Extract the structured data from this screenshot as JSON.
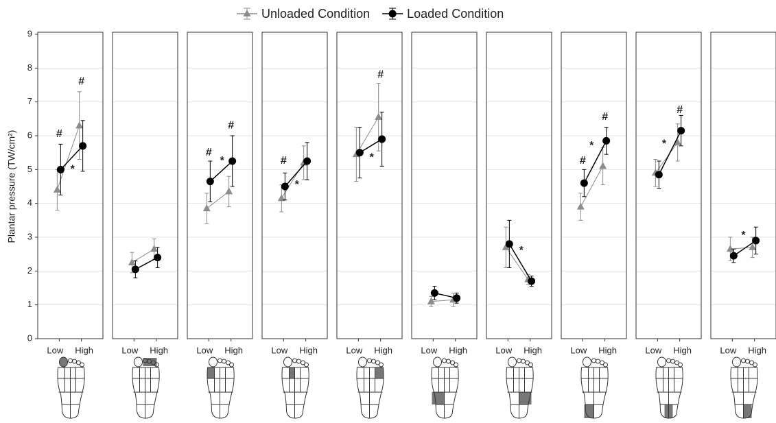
{
  "chart_data": {
    "type": "line",
    "ylabel": "Plantar pressure (TW/cm²)",
    "ylim": [
      0,
      9
    ],
    "yticks": [
      0,
      1,
      2,
      3,
      4,
      5,
      6,
      7,
      8,
      9
    ],
    "grid": true,
    "series": [
      {
        "name": "Unloaded Condition",
        "color": "#8c8c8c",
        "marker": "triangle"
      },
      {
        "name": "Loaded Condition",
        "color": "#000000",
        "marker": "circle"
      }
    ],
    "panels": [
      {
        "categories": [
          "Low",
          "High"
        ],
        "values": [
          [
            4.4,
            6.3
          ],
          [
            5.0,
            5.7
          ]
        ],
        "errors": [
          [
            0.6,
            1.0
          ],
          [
            0.75,
            0.75
          ]
        ],
        "annotations": [
          {
            "text": "#",
            "x": 0,
            "y": 6.05
          },
          {
            "text": "#",
            "x": 1,
            "y": 7.6
          },
          {
            "text": "*",
            "x": 0.6,
            "y": 5.0
          }
        ]
      },
      {
        "categories": [
          "Low",
          "High"
        ],
        "values": [
          [
            2.25,
            2.65
          ],
          [
            2.05,
            2.4
          ]
        ],
        "errors": [
          [
            0.3,
            0.3
          ],
          [
            0.25,
            0.3
          ]
        ],
        "annotations": []
      },
      {
        "categories": [
          "Low",
          "High"
        ],
        "values": [
          [
            3.85,
            4.35
          ],
          [
            4.65,
            5.25
          ]
        ],
        "errors": [
          [
            0.45,
            0.45
          ],
          [
            0.6,
            0.75
          ]
        ],
        "annotations": [
          {
            "text": "#",
            "x": 0,
            "y": 5.5
          },
          {
            "text": "*",
            "x": 0.6,
            "y": 5.25
          },
          {
            "text": "#",
            "x": 1,
            "y": 6.3
          }
        ]
      },
      {
        "categories": [
          "Low",
          "High"
        ],
        "values": [
          [
            4.15,
            5.2
          ],
          [
            4.5,
            5.25
          ]
        ],
        "errors": [
          [
            0.4,
            0.5
          ],
          [
            0.4,
            0.55
          ]
        ],
        "annotations": [
          {
            "text": "#",
            "x": 0,
            "y": 5.25
          },
          {
            "text": "*",
            "x": 0.6,
            "y": 4.55
          }
        ]
      },
      {
        "categories": [
          "Low",
          "High"
        ],
        "values": [
          [
            5.45,
            6.55
          ],
          [
            5.5,
            5.9
          ]
        ],
        "errors": [
          [
            0.8,
            1.0
          ],
          [
            0.75,
            0.8
          ]
        ],
        "annotations": [
          {
            "text": "#",
            "x": 1,
            "y": 7.8
          },
          {
            "text": "*",
            "x": 0.6,
            "y": 5.35
          }
        ]
      },
      {
        "categories": [
          "Low",
          "High"
        ],
        "values": [
          [
            1.1,
            1.15
          ],
          [
            1.35,
            1.2
          ]
        ],
        "errors": [
          [
            0.15,
            0.2
          ],
          [
            0.2,
            0.15
          ]
        ],
        "annotations": []
      },
      {
        "categories": [
          "Low",
          "High"
        ],
        "values": [
          [
            2.7,
            1.75
          ],
          [
            2.8,
            1.7
          ]
        ],
        "errors": [
          [
            0.6,
            0.15
          ],
          [
            0.7,
            0.15
          ]
        ],
        "annotations": [
          {
            "text": "*",
            "x": 0.6,
            "y": 2.6
          }
        ]
      },
      {
        "categories": [
          "Low",
          "High"
        ],
        "values": [
          [
            3.9,
            5.1
          ],
          [
            4.6,
            5.85
          ]
        ],
        "errors": [
          [
            0.4,
            0.55
          ],
          [
            0.4,
            0.4
          ]
        ],
        "annotations": [
          {
            "text": "#",
            "x": 0,
            "y": 5.25
          },
          {
            "text": "*",
            "x": 0.4,
            "y": 5.7
          },
          {
            "text": "#",
            "x": 1,
            "y": 6.55
          }
        ]
      },
      {
        "categories": [
          "Low",
          "High"
        ],
        "values": [
          [
            4.9,
            5.8
          ],
          [
            4.85,
            6.15
          ]
        ],
        "errors": [
          [
            0.4,
            0.55
          ],
          [
            0.4,
            0.45
          ]
        ],
        "annotations": [
          {
            "text": "*",
            "x": 0.3,
            "y": 5.75
          },
          {
            "text": "#",
            "x": 1,
            "y": 6.75
          }
        ]
      },
      {
        "categories": [
          "Low",
          "High"
        ],
        "values": [
          [
            2.65,
            2.7
          ],
          [
            2.45,
            2.9
          ]
        ],
        "errors": [
          [
            0.35,
            0.3
          ],
          [
            0.2,
            0.4
          ]
        ],
        "annotations": [
          {
            "text": "*",
            "x": 0.5,
            "y": 3.05
          }
        ]
      }
    ]
  }
}
